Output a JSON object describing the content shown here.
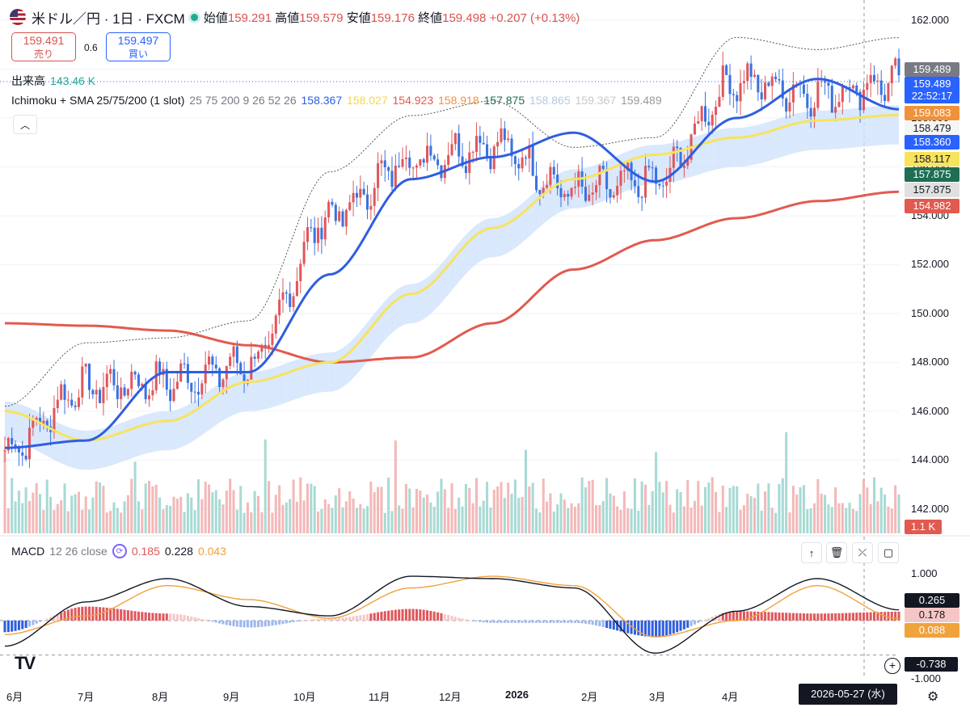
{
  "header": {
    "symbol": "米ドル／円 · 1日 · FXCM",
    "open_label": "始値",
    "open": "159.291",
    "high_label": "高値",
    "high": "159.579",
    "low_label": "安値",
    "low": "159.176",
    "close_label": "終値",
    "close": "159.498",
    "change": "+0.207 (+0.13%)"
  },
  "trade": {
    "sell_price": "159.491",
    "sell_label": "売り",
    "spread": "0.6",
    "buy_price": "159.497",
    "buy_label": "買い"
  },
  "volume_legend": {
    "label": "出来高",
    "value": "143.46 K"
  },
  "indicator_legend": {
    "name": "Ichimoku + SMA 25/75/200 (1 slot)",
    "params": "25 75 200 9 26 52 26",
    "values": [
      "158.367",
      "158.027",
      "154.923",
      "158.918",
      "157.875",
      "158.865",
      "159.367",
      "159.489"
    ]
  },
  "macd_legend": {
    "name": "MACD",
    "params": "12 26 close",
    "hist": "0.185",
    "macd": "0.228",
    "signal": "0.043"
  },
  "colors": {
    "up": "#e0575b",
    "down": "#3a72e0",
    "sma25": "#2f5ee0",
    "sma75": "#f7e35e",
    "sma200": "#e25a4f",
    "cloud_bull": "#cfe2fb",
    "cloud_bear": "#d7d7d7",
    "macd_line": "#131722",
    "macd_signal": "#f0a23c"
  },
  "price_axis": {
    "ticks": [
      "162.000",
      "160.000",
      "158.000",
      "156.000",
      "154.000",
      "152.000",
      "150.000",
      "148.000",
      "146.000",
      "144.000",
      "142.000"
    ],
    "tags": [
      {
        "text": "159.489",
        "color": "#787b86"
      },
      {
        "text": "159.489",
        "color": "#2962ff"
      },
      {
        "text": "22:52:17",
        "color": "#2962ff"
      },
      {
        "text": "159.083",
        "color": "#f0923c"
      },
      {
        "text": "158.479",
        "color": "#f5f5f5"
      },
      {
        "text": "158.360",
        "color": "#2962ff"
      },
      {
        "text": "158.117",
        "color": "#f7e35e"
      },
      {
        "text": "157.875",
        "color": "#1f6e54"
      },
      {
        "text": "157.875",
        "color": "#e0e0e0"
      },
      {
        "text": "154.982",
        "color": "#e25a4f"
      }
    ],
    "volume_tag": "1.1 K"
  },
  "macd_axis": {
    "ticks": [
      "1.000",
      "-1.000"
    ],
    "tags": [
      {
        "text": "0.265",
        "color": "#131722"
      },
      {
        "text": "0.178",
        "color": "#f6c6c6"
      },
      {
        "text": "0.088",
        "color": "#f0a23c"
      },
      {
        "text": "-0.738",
        "color": "#131722"
      }
    ]
  },
  "time_axis": {
    "labels": [
      {
        "text": "6月",
        "bold": false
      },
      {
        "text": "7月",
        "bold": false
      },
      {
        "text": "8月",
        "bold": false
      },
      {
        "text": "9月",
        "bold": false
      },
      {
        "text": "10月",
        "bold": false
      },
      {
        "text": "11月",
        "bold": false
      },
      {
        "text": "12月",
        "bold": false
      },
      {
        "text": "2026",
        "bold": true
      },
      {
        "text": "2月",
        "bold": false
      },
      {
        "text": "3月",
        "bold": false
      },
      {
        "text": "4月",
        "bold": false
      },
      {
        "text": "5",
        "bold": false
      }
    ],
    "crosshair_date": "2026-05-27 (水)"
  },
  "chart_data": {
    "type": "candlestick",
    "interval": "1D",
    "x": [
      "2025-06",
      "2025-07",
      "2025-08",
      "2025-09",
      "2025-10",
      "2025-11",
      "2025-12",
      "2026-01",
      "2026-02",
      "2026-03",
      "2026-04",
      "2026-05"
    ],
    "ylim": [
      141.0,
      162.5
    ],
    "monthly_close": [
      144.4,
      147.0,
      147.2,
      147.9,
      154.0,
      156.3,
      156.9,
      155.0,
      155.4,
      159.5,
      159.0,
      159.49
    ],
    "series": [
      {
        "name": "SMA 25",
        "values": [
          144.5,
          144.8,
          147.6,
          147.6,
          151.6,
          155.5,
          156.4,
          157.4,
          155.4,
          158.0,
          159.6,
          158.36
        ]
      },
      {
        "name": "SMA 75",
        "values": [
          146.0,
          144.8,
          145.6,
          147.2,
          148.0,
          150.8,
          153.5,
          155.5,
          156.5,
          157.2,
          157.9,
          158.12
        ]
      },
      {
        "name": "SMA 200",
        "values": [
          149.6,
          149.5,
          149.3,
          148.7,
          148.0,
          148.2,
          149.6,
          151.8,
          153.0,
          153.9,
          154.6,
          154.98
        ]
      }
    ],
    "macd": {
      "ylim": [
        -1.25,
        1.35
      ],
      "macd": [
        -0.55,
        0.4,
        0.9,
        0.3,
        0.1,
        0.95,
        0.9,
        0.7,
        -0.7,
        0.2,
        0.9,
        0.23
      ],
      "signal": [
        -0.3,
        0.1,
        0.75,
        0.45,
        0.05,
        0.7,
        0.95,
        0.75,
        -0.35,
        0.0,
        0.75,
        0.04
      ]
    }
  }
}
